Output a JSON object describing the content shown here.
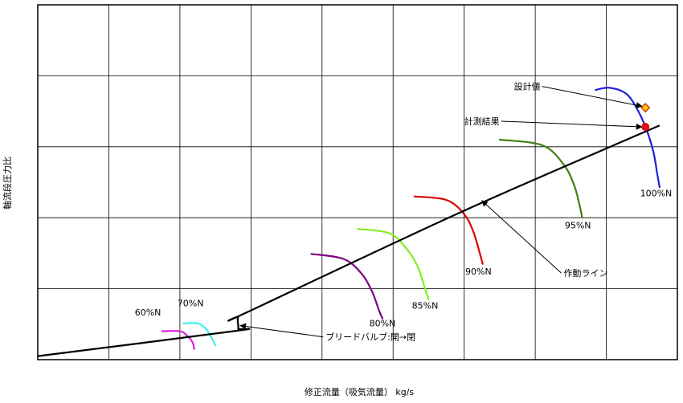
{
  "chart_data": {
    "type": "line",
    "xlabel": "修正流量（吸気流量） kg/s",
    "ylabel": "軸流段圧力比",
    "xlim": [
      0,
      9
    ],
    "ylim": [
      0,
      5
    ],
    "grid": true,
    "speed_lines": [
      {
        "name": "60%N",
        "color": "#e020e0",
        "points": [
          [
            1.75,
            0.4
          ],
          [
            2.0,
            0.4
          ],
          [
            2.1,
            0.34
          ],
          [
            2.18,
            0.24
          ],
          [
            2.2,
            0.15
          ]
        ],
        "label_at": [
          1.55,
          0.62
        ]
      },
      {
        "name": "70%N",
        "color": "#40f0f0",
        "points": [
          [
            2.05,
            0.51
          ],
          [
            2.25,
            0.51
          ],
          [
            2.37,
            0.43
          ],
          [
            2.45,
            0.3
          ],
          [
            2.5,
            0.2
          ]
        ],
        "label_at": [
          2.15,
          0.75
        ]
      },
      {
        "name": "80%N",
        "color": "#800080",
        "points": [
          [
            3.85,
            1.49
          ],
          [
            4.3,
            1.42
          ],
          [
            4.55,
            1.22
          ],
          [
            4.7,
            0.97
          ],
          [
            4.8,
            0.7
          ],
          [
            4.85,
            0.58
          ]
        ],
        "label_at": [
          4.85,
          0.47
        ]
      },
      {
        "name": "85%N",
        "color": "#80f020",
        "points": [
          [
            4.5,
            1.84
          ],
          [
            4.95,
            1.78
          ],
          [
            5.2,
            1.55
          ],
          [
            5.35,
            1.3
          ],
          [
            5.45,
            1.0
          ],
          [
            5.5,
            0.85
          ]
        ],
        "label_at": [
          5.45,
          0.72
        ]
      },
      {
        "name": "90%N",
        "color": "#dd0000",
        "points": [
          [
            5.3,
            2.3
          ],
          [
            5.75,
            2.25
          ],
          [
            6.0,
            2.05
          ],
          [
            6.13,
            1.8
          ],
          [
            6.22,
            1.5
          ],
          [
            6.26,
            1.35
          ]
        ],
        "label_at": [
          6.2,
          1.2
        ]
      },
      {
        "name": "95%N",
        "color": "#408010",
        "points": [
          [
            6.5,
            3.1
          ],
          [
            7.1,
            3.02
          ],
          [
            7.4,
            2.75
          ],
          [
            7.55,
            2.45
          ],
          [
            7.63,
            2.15
          ],
          [
            7.66,
            2.0
          ]
        ],
        "label_at": [
          7.6,
          1.85
        ]
      },
      {
        "name": "100%N",
        "color": "#2020dd",
        "points": [
          [
            7.85,
            3.8
          ],
          [
            8.05,
            3.83
          ],
          [
            8.3,
            3.73
          ],
          [
            8.5,
            3.4
          ],
          [
            8.65,
            2.98
          ],
          [
            8.72,
            2.6
          ],
          [
            8.75,
            2.43
          ]
        ],
        "label_at": [
          8.7,
          2.3
        ]
      }
    ],
    "operating_line": {
      "name": "作動ライン",
      "points": [
        [
          0,
          0.05
        ],
        [
          2.75,
          0.4
        ],
        [
          2.82,
          0.44
        ],
        [
          2.82,
          0.6
        ],
        [
          2.95,
          0.67
        ],
        [
          6.0,
          2.1
        ],
        [
          8.75,
          3.3
        ]
      ]
    },
    "markers": [
      {
        "name": "設計値",
        "x": 8.55,
        "y": 3.55,
        "shape": "diamond",
        "fill": "#ffd700",
        "stroke": "#e03020"
      },
      {
        "name": "計測結果",
        "x": 8.55,
        "y": 3.28,
        "shape": "circle",
        "fill": "#e01010",
        "stroke": "#e01010"
      }
    ],
    "annotations": [
      {
        "text": "設計値",
        "text_at": [
          6.7,
          3.85
        ],
        "arrow_to": [
          8.5,
          3.57
        ]
      },
      {
        "text": "計測結果",
        "text_at": [
          6.0,
          3.36
        ],
        "arrow_to": [
          8.5,
          3.28
        ]
      },
      {
        "text": "作動ライン",
        "text_at": [
          7.4,
          1.22
        ],
        "arrow_to": [
          6.25,
          2.24
        ]
      },
      {
        "text": "ブリードバルブ:開→閉",
        "text_at": [
          4.05,
          0.32
        ],
        "arrow_to": [
          2.85,
          0.48
        ]
      }
    ]
  }
}
